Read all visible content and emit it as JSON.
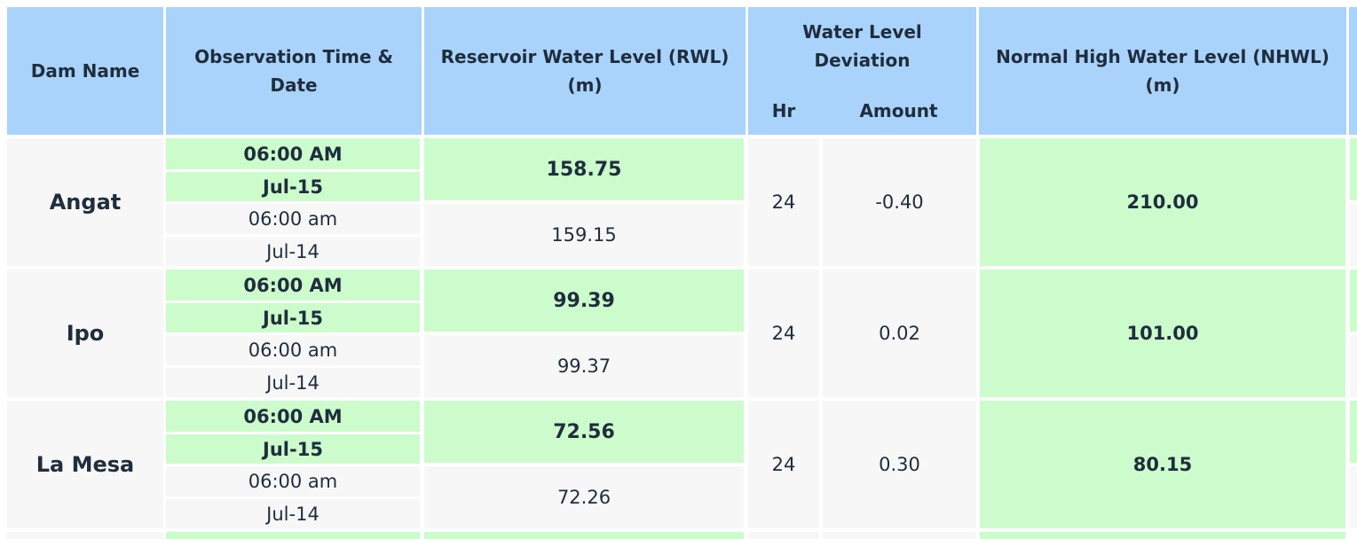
{
  "headers": {
    "dam_name": "Dam Name",
    "obs_time": "Observation Time & Date",
    "rwl": "Reservoir Water Level (RWL) (m)",
    "wld": "Water Level Deviation",
    "hr": "Hr",
    "amount": "Amount",
    "nhwl": "Normal High Water Level (NHWL) (m)"
  },
  "rows": [
    {
      "name": "Angat",
      "cur_time": "06:00 AM",
      "cur_date": "Jul-15",
      "cur_rwl": "158.75",
      "prev_time": "06:00 am",
      "prev_date": "Jul-14",
      "prev_rwl": "159.15",
      "hr": "24",
      "amount": "-0.40",
      "nhwl": "210.00"
    },
    {
      "name": "Ipo",
      "cur_time": "06:00 AM",
      "cur_date": "Jul-15",
      "cur_rwl": "99.39",
      "prev_time": "06:00 am",
      "prev_date": "Jul-14",
      "prev_rwl": "99.37",
      "hr": "24",
      "amount": "0.02",
      "nhwl": "101.00"
    },
    {
      "name": "La Mesa",
      "cur_time": "06:00 AM",
      "cur_date": "Jul-15",
      "cur_rwl": "72.56",
      "prev_time": "06:00 am",
      "prev_date": "Jul-14",
      "prev_rwl": "72.26",
      "hr": "24",
      "amount": "0.30",
      "nhwl": "80.15"
    }
  ],
  "colors": {
    "header": "#a9d3fb",
    "current": "#ccfccc",
    "previous": "#f7f7f7"
  }
}
